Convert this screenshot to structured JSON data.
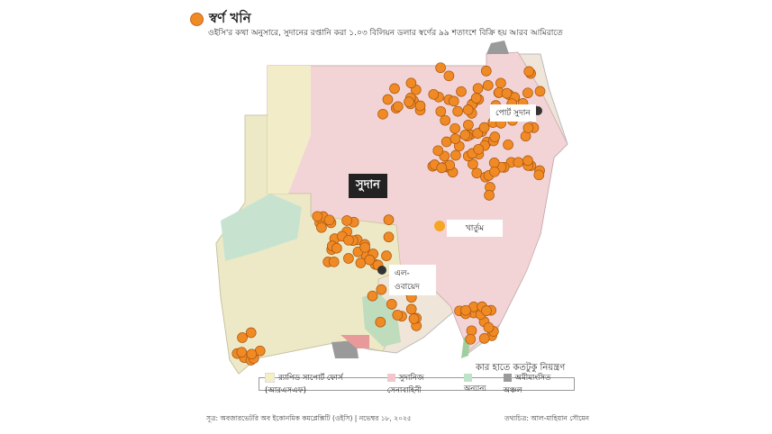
{
  "title": "স্বর্ণ খনি",
  "subtitle": "ওইসি'র কথা অনুসারে, সুদানের রপ্তানি করা ১.০৩ বিলিয়ন ডলার স্বর্ণের ৯৯ শতাংশে বিক্রি হয় আরব আমিরাতে",
  "map": {
    "country_label": "সুদান",
    "cities": [
      {
        "name": "পোর্ট সুদান",
        "marker_color": "#333333"
      },
      {
        "name": "খার্তুম",
        "marker_color": "#f5a623"
      },
      {
        "name": "এল-ওবায়েদ",
        "marker_color": "#333333"
      }
    ],
    "gold_mine_color": "#f08a24"
  },
  "legend": {
    "title": "কার হাতে কতটুকু নিয়ন্ত্রণ",
    "items": [
      {
        "label": "র‍্যাপিড সাপোর্ট ফোর্স (আরএসএফ)",
        "color": "#f6efc4"
      },
      {
        "label": "সুদানিজ সেনাবাহিনী",
        "color": "#f2c7cc"
      },
      {
        "label": "অন্যান্য",
        "color": "#bfe3c8"
      },
      {
        "label": "অমীমাংসিত অঞ্চল",
        "color": "#9a9a9a"
      }
    ]
  },
  "footer": {
    "source": "সূত্র: অবজারভেটরি অব ইকোনমিক কমপ্লেক্সিটি (ওইসি) | নভেম্বর ১৮, ২০২৫",
    "credit": "তথ্যচিত্র: আল-মাহিয়ান সৌমেন"
  }
}
